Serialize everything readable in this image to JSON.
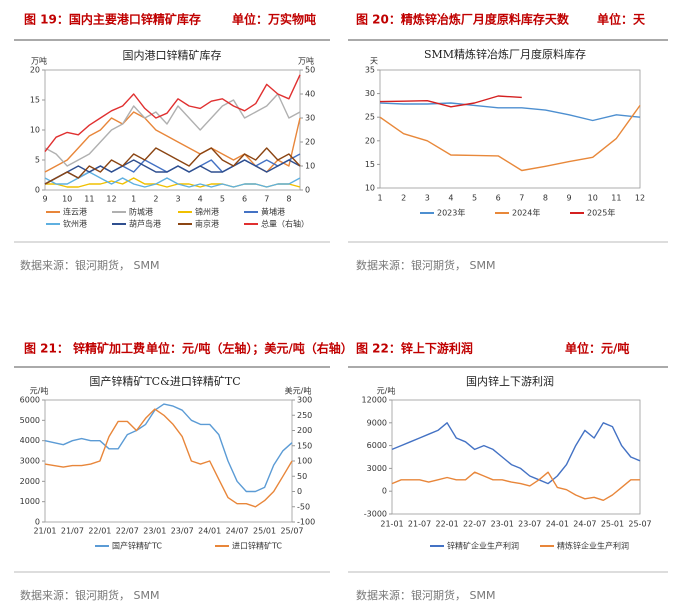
{
  "panels": [
    {
      "figure": "图 19：国内主要港口锌精矿库存",
      "unit": "单位：万实物吨",
      "source": "数据来源：银河期货，  SMM"
    },
    {
      "figure": "图 20：精炼锌冶炼厂月度原料库存天数",
      "unit": "单位：天",
      "source": "数据来源：银河期货，  SMM"
    },
    {
      "figure": "图 21： 锌精矿加工费",
      "unit": "单位：元/吨（左轴）；美元/吨（右轴）",
      "source": "数据来源：银河期货，  SMM"
    },
    {
      "figure": "图 22：锌上下游利润",
      "unit": "单位：元/吨",
      "source": "数据来源：银河期货，  SMM"
    }
  ],
  "chart_data": [
    {
      "type": "line",
      "title": "国内港口锌精矿库存",
      "y_label": "万吨",
      "y2_label": "万吨",
      "categories": [
        "9",
        null,
        "10",
        null,
        "11",
        null,
        "12",
        null,
        "1",
        null,
        "2",
        null,
        "3",
        null,
        "4",
        null,
        "5",
        null,
        "6",
        null,
        "7",
        null,
        "8",
        null
      ],
      "ylim": [
        0,
        20
      ],
      "yticks": [
        0,
        5,
        10,
        15,
        20
      ],
      "y2lim": [
        0,
        50
      ],
      "y2ticks": [
        0,
        10,
        20,
        30,
        40,
        50
      ],
      "series": [
        {
          "name": "连云港",
          "color": "#e8863a",
          "values": [
            3,
            4,
            5,
            7,
            9,
            10,
            12,
            11,
            13,
            12,
            10,
            9,
            8,
            7,
            6,
            7,
            6,
            5,
            6,
            4,
            3,
            5,
            4,
            12
          ]
        },
        {
          "name": "防城港",
          "color": "#b0b0b0",
          "values": [
            7,
            6,
            4,
            5,
            6,
            8,
            10,
            11,
            14,
            12,
            13,
            11,
            14,
            12,
            10,
            12,
            14,
            15,
            12,
            13,
            14,
            16,
            12,
            13
          ]
        },
        {
          "name": "锦州港",
          "color": "#f0c000",
          "values": [
            1,
            1,
            0.5,
            0.5,
            1,
            1,
            1.5,
            1,
            2,
            1,
            1,
            0.5,
            1,
            1,
            0.5,
            1,
            1,
            0.5,
            1,
            1,
            0.5,
            1,
            1,
            0.5
          ]
        },
        {
          "name": "黄埔港",
          "color": "#4472c4",
          "values": [
            1,
            2,
            3,
            2,
            3,
            4,
            3,
            4,
            3,
            5,
            4,
            3,
            4,
            3,
            4,
            5,
            3,
            4,
            5,
            4,
            5,
            4,
            5,
            6
          ]
        },
        {
          "name": "钦州港",
          "color": "#5fb0e0",
          "values": [
            2,
            1,
            1,
            2,
            3,
            2,
            1,
            2,
            1,
            0.5,
            1,
            2,
            1,
            0.5,
            1,
            0.5,
            1,
            0.5,
            1,
            1,
            0.5,
            1,
            1,
            2
          ]
        },
        {
          "name": "葫芦岛港",
          "color": "#2f4f8f",
          "values": [
            1,
            2,
            3,
            4,
            3,
            4,
            3,
            4,
            5,
            4,
            3,
            3,
            4,
            3,
            4,
            3,
            3,
            4,
            5,
            4,
            3,
            4,
            5,
            4
          ]
        },
        {
          "name": "南京港",
          "color": "#8b4513",
          "values": [
            1,
            2,
            3,
            2,
            4,
            3,
            5,
            4,
            6,
            5,
            7,
            6,
            5,
            4,
            6,
            7,
            5,
            4,
            6,
            5,
            7,
            5,
            6,
            4
          ]
        },
        {
          "name": "总量（右轴）",
          "color": "#e03030",
          "axis": "y2",
          "values": [
            16,
            22,
            24,
            23,
            27,
            30,
            33,
            35,
            40,
            34,
            30,
            32,
            38,
            35,
            34,
            37,
            38,
            35,
            33,
            36,
            44,
            40,
            38,
            48
          ]
        }
      ]
    },
    {
      "type": "line",
      "title": "SMM精炼锌冶炼厂月度原料库存",
      "y_label": "天",
      "categories": [
        "1",
        "2",
        "3",
        "4",
        "5",
        "6",
        "7",
        "8",
        "9",
        "10",
        "11",
        "12"
      ],
      "ylim": [
        10,
        35
      ],
      "yticks": [
        10,
        15,
        20,
        25,
        30,
        35
      ],
      "series": [
        {
          "name": "2023年",
          "color": "#4d8fd0",
          "values": [
            28,
            27.8,
            27.8,
            28,
            27.5,
            27,
            27,
            26.5,
            25.5,
            24.3,
            25.5,
            25
          ]
        },
        {
          "name": "2024年",
          "color": "#e8883a",
          "values": [
            25,
            21.5,
            20,
            17,
            16.9,
            16.8,
            13.7,
            14.6,
            15.6,
            16.5,
            20.5,
            27.5
          ]
        },
        {
          "name": "2025年",
          "color": "#d42020",
          "values": [
            28.3,
            28.4,
            28.5,
            27.2,
            28,
            29.5,
            29.2,
            null,
            null,
            null,
            null,
            null
          ]
        }
      ]
    },
    {
      "type": "line",
      "title": "国产锌精矿TC&进口锌精矿TC",
      "y_label": "元/吨",
      "y2_label": "美元/吨",
      "categories": [
        "21/01",
        null,
        null,
        "21/07",
        null,
        null,
        "22/01",
        null,
        null,
        "22/07",
        null,
        null,
        "23/01",
        null,
        null,
        "23/07",
        null,
        null,
        "24/01",
        null,
        null,
        "24/07",
        null,
        null,
        "25/01",
        null,
        null,
        "25/07"
      ],
      "ylim": [
        0,
        6000
      ],
      "yticks": [
        0,
        1000,
        2000,
        3000,
        4000,
        5000,
        6000
      ],
      "y2lim": [
        -100,
        300
      ],
      "y2ticks": [
        -100,
        -50,
        0,
        50,
        100,
        150,
        200,
        250,
        300
      ],
      "series": [
        {
          "name": "国产锌精矿TC",
          "color": "#5b9bd5",
          "values": [
            4000,
            3900,
            3800,
            4000,
            4100,
            4000,
            4000,
            3600,
            3600,
            4300,
            4500,
            4800,
            5500,
            5800,
            5700,
            5500,
            5000,
            4800,
            4800,
            4300,
            3000,
            2000,
            1500,
            1500,
            1700,
            2800,
            3500,
            3900
          ]
        },
        {
          "name": "进口锌精矿TC",
          "color": "#e8863a",
          "axis": "y2",
          "values": [
            90,
            85,
            80,
            85,
            85,
            90,
            100,
            180,
            230,
            230,
            200,
            240,
            270,
            250,
            220,
            180,
            100,
            90,
            100,
            40,
            -20,
            -40,
            -40,
            -50,
            -30,
            0,
            50,
            100
          ]
        }
      ]
    },
    {
      "type": "line",
      "title": "国内锌上下游利润",
      "y_label": "元/吨",
      "categories": [
        "21-01",
        null,
        null,
        "21-07",
        null,
        null,
        "22-01",
        null,
        null,
        "22-07",
        null,
        null,
        "23-01",
        null,
        null,
        "23-07",
        null,
        null,
        "24-01",
        null,
        null,
        "24-07",
        null,
        null,
        "25-01",
        null,
        null,
        "25-07"
      ],
      "ylim": [
        -3000,
        12000
      ],
      "yticks": [
        -3000,
        0,
        3000,
        6000,
        9000,
        12000
      ],
      "series": [
        {
          "name": "锌精矿企业生产利润",
          "color": "#4472c4",
          "values": [
            5500,
            6000,
            6500,
            7000,
            7500,
            8000,
            9000,
            7000,
            6500,
            5500,
            6000,
            5500,
            4500,
            3500,
            3000,
            2000,
            1500,
            1000,
            2000,
            3500,
            6000,
            8000,
            7000,
            9000,
            8500,
            6000,
            4500,
            4000
          ]
        },
        {
          "name": "精炼锌企业生产利润",
          "color": "#e8863a",
          "values": [
            1000,
            1500,
            1500,
            1500,
            1200,
            1500,
            1800,
            1500,
            1500,
            2500,
            2000,
            1500,
            1500,
            1200,
            1000,
            700,
            1500,
            2500,
            500,
            200,
            -500,
            -1000,
            -800,
            -1200,
            -500,
            500,
            1500,
            1500
          ]
        }
      ]
    }
  ]
}
